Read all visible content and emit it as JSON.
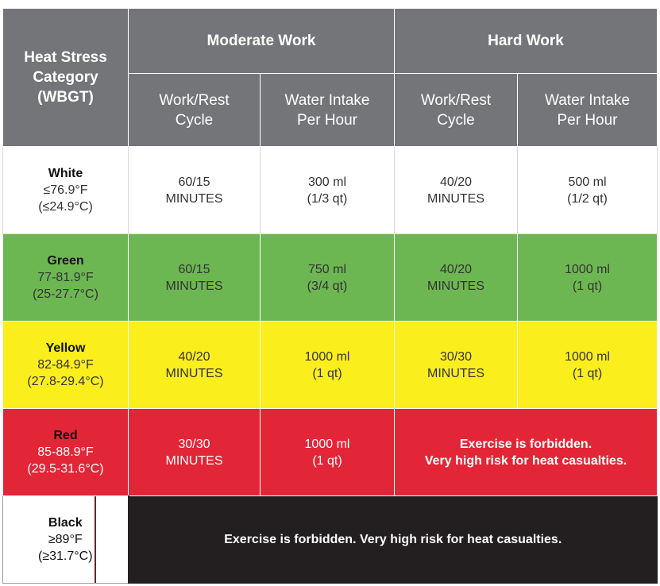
{
  "header": {
    "category": [
      "Heat Stress",
      "Category",
      "(WBGT)"
    ],
    "moderate": "Moderate Work",
    "hard": "Hard Work",
    "sub": {
      "work_rest": [
        "Work/Rest",
        "Cycle"
      ],
      "water": [
        "Water Intake",
        "Per Hour"
      ]
    }
  },
  "rows": [
    {
      "name": "White",
      "range": [
        "≤76.9°F",
        "(≤24.9°C)"
      ],
      "moderate_cycle": [
        "60/15",
        "MINUTES"
      ],
      "moderate_water": [
        "300 ml",
        "(1/3 qt)"
      ],
      "hard_cycle": [
        "40/20",
        "MINUTES"
      ],
      "hard_water": [
        "500 ml",
        "(1/2 qt)"
      ]
    },
    {
      "name": "Green",
      "range": [
        "77-81.9°F",
        "(25-27.7°C)"
      ],
      "moderate_cycle": [
        "60/15",
        "MINUTES"
      ],
      "moderate_water": [
        "750 ml",
        "(3/4 qt)"
      ],
      "hard_cycle": [
        "40/20",
        "MINUTES"
      ],
      "hard_water": [
        "1000 ml",
        "(1 qt)"
      ]
    },
    {
      "name": "Yellow",
      "range": [
        "82-84.9°F",
        "(27.8-29.4°C)"
      ],
      "moderate_cycle": [
        "40/20",
        "MINUTES"
      ],
      "moderate_water": [
        "1000 ml",
        "(1 qt)"
      ],
      "hard_cycle": [
        "30/30",
        "MINUTES"
      ],
      "hard_water": [
        "1000 ml",
        "(1 qt)"
      ]
    },
    {
      "name": "Red",
      "range": [
        "85-88.9°F",
        "(29.5-31.6°C)"
      ],
      "moderate_cycle": [
        "30/30",
        "MINUTES"
      ],
      "moderate_water": [
        "1000 ml",
        "(1 qt)"
      ],
      "hard_note": [
        "Exercise is forbidden.",
        "Very high risk for heat casualties."
      ]
    },
    {
      "name": "Black",
      "range": [
        "≥89°F",
        "(≥31.7°C)"
      ],
      "note": "Exercise is forbidden. Very high risk for heat casualties."
    }
  ],
  "colors": {
    "header": "#747578",
    "white": "#ffffff",
    "green": "#6db752",
    "yellow": "#fbee1d",
    "red": "#e22637",
    "black": "#231f20"
  }
}
